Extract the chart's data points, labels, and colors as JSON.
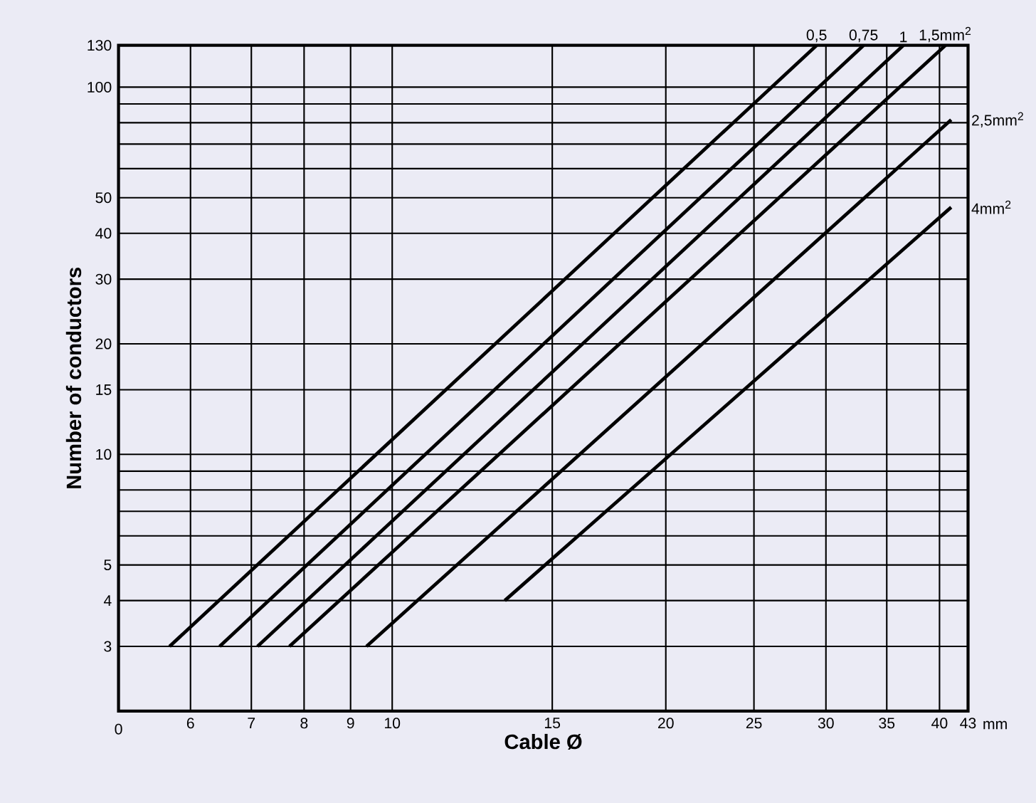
{
  "chart_data": {
    "type": "line",
    "xlabel": "Cable Ø",
    "ylabel": "Number of conductors",
    "log": "xy",
    "grid": true,
    "legend": false,
    "line_style": "solid",
    "xlim": [
      5,
      43
    ],
    "ylim": [
      2,
      130
    ],
    "xticks": [
      6,
      7,
      8,
      9,
      10,
      15,
      20,
      25,
      30,
      35,
      40,
      43
    ],
    "annotations": [
      "0",
      "mm"
    ],
    "yticks": [
      3,
      4,
      5,
      {
        "value": 6,
        "label": null
      },
      {
        "value": 7,
        "label": null
      },
      {
        "value": 8,
        "label": null
      },
      {
        "value": 9,
        "label": null
      },
      10,
      15,
      20,
      30,
      40,
      50,
      {
        "value": 60,
        "label": null
      },
      {
        "value": 70,
        "label": null
      },
      {
        "value": 80,
        "label": null
      },
      {
        "value": 90,
        "label": null
      },
      100,
      130
    ],
    "series": [
      {
        "name": "0,5",
        "color": "#000000",
        "x": [
          5.69,
          29.3
        ],
        "values": [
          3,
          130
        ]
      },
      {
        "name": "0,75",
        "color": "#000000",
        "x": [
          6.46,
          33.0
        ],
        "values": [
          3,
          130
        ]
      },
      {
        "name": "1",
        "color": "#000000",
        "x": [
          7.11,
          36.5
        ],
        "values": [
          3,
          130
        ]
      },
      {
        "name": "1,5mm$^{2}$",
        "color": "#000000",
        "x": [
          7.71,
          40.6
        ],
        "values": [
          3,
          130
        ]
      },
      {
        "name": "2,5mm$^{2}$",
        "color": "#000000",
        "x": [
          9.37,
          41.2
        ],
        "values": [
          3,
          81.5
        ]
      },
      {
        "name": "4mm$^{2}$",
        "color": "#000000",
        "x": [
          13.3,
          41.2
        ],
        "values": [
          4,
          47.1
        ]
      }
    ]
  }
}
